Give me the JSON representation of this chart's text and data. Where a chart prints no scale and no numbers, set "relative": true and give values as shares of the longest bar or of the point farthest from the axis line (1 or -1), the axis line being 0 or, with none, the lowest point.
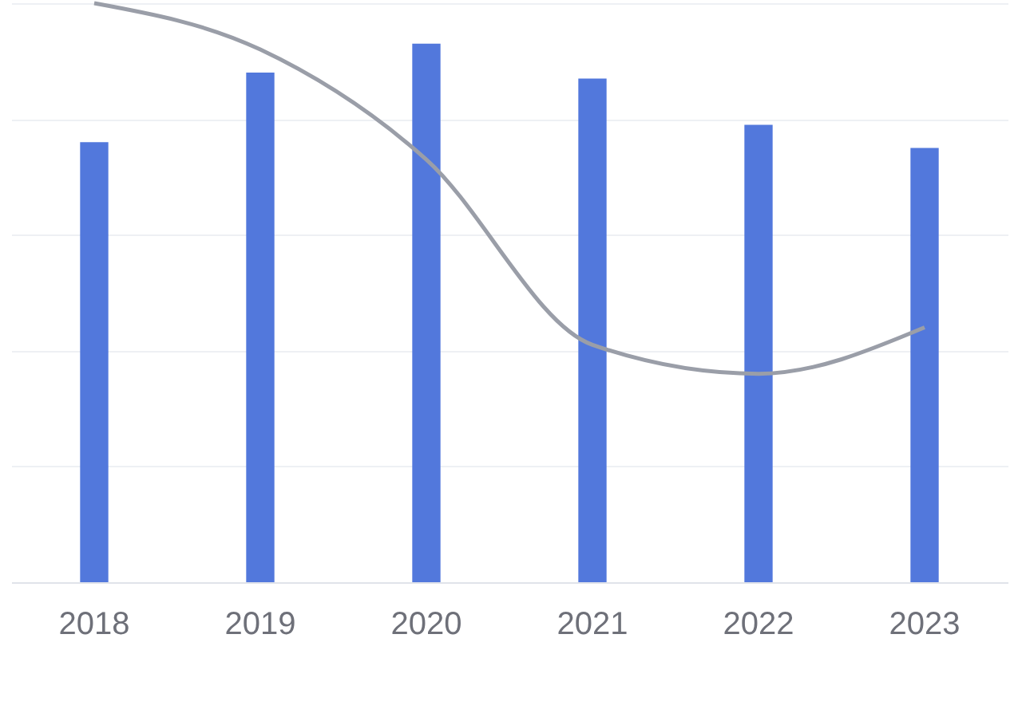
{
  "chart_data": {
    "type": "bar",
    "relative": true,
    "grid": "y",
    "categories": [
      "2018",
      "2019",
      "2020",
      "2021",
      "2022",
      "2023"
    ],
    "series": [
      {
        "color": "#5278dc",
        "values": [
          0.76,
          0.88,
          0.93,
          0.87,
          0.79,
          0.75
        ]
      },
      {
        "type": "line",
        "color": "#9a9ea8",
        "marker": "none",
        "values": [
          1,
          0.92,
          0.73,
          0.41,
          0.36,
          0.44
        ]
      }
    ]
  }
}
